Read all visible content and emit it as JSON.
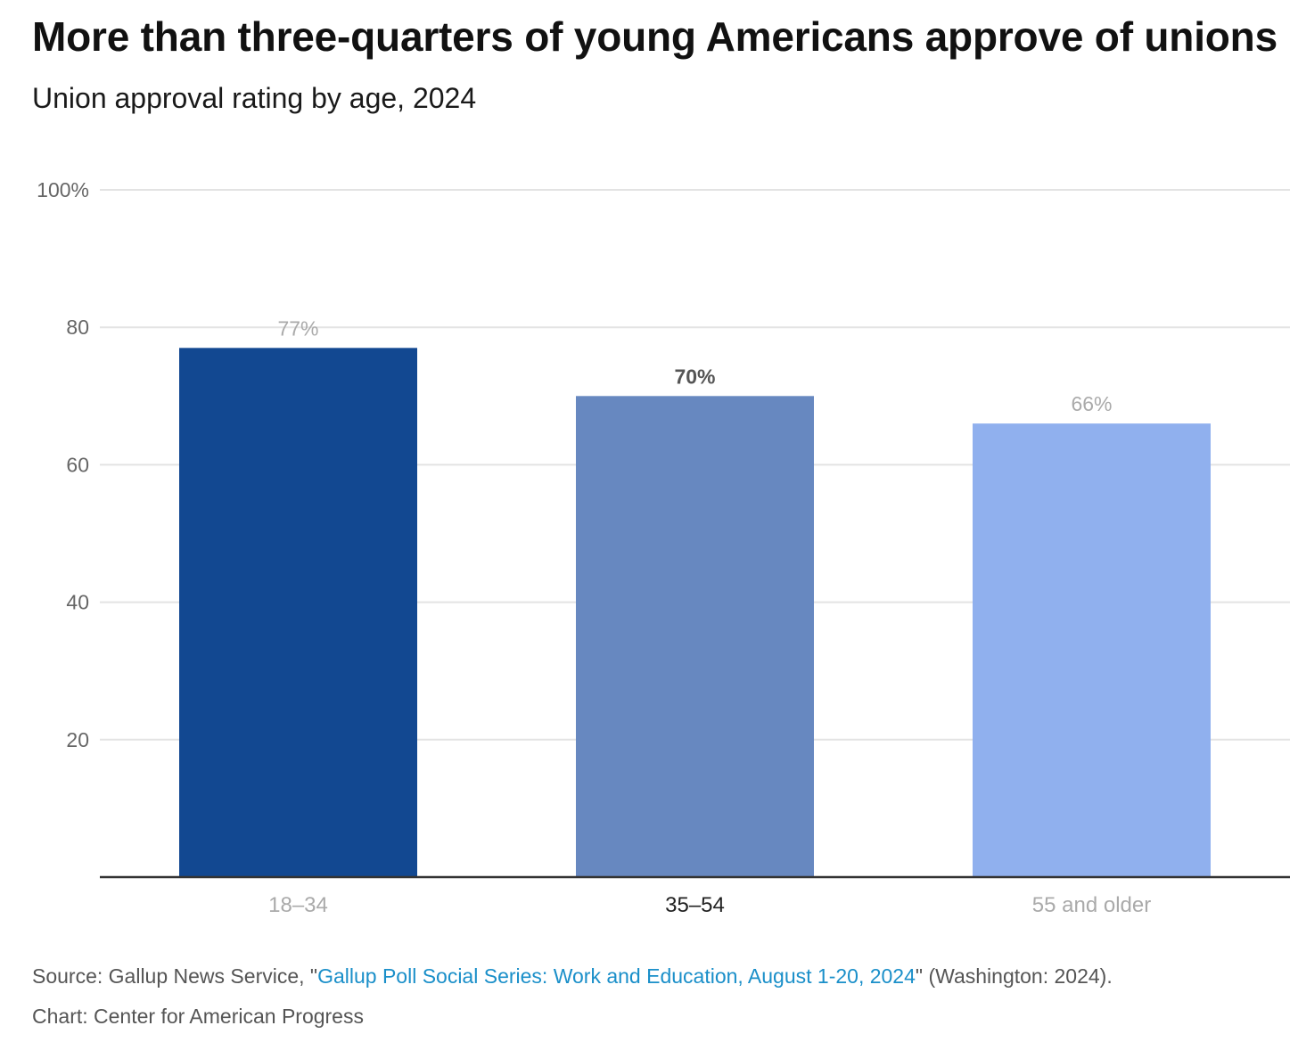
{
  "title": "More than three-quarters of young Americans approve of unions",
  "subtitle": "Union approval rating by age, 2024",
  "chart_data": {
    "type": "bar",
    "categories": [
      "18–34",
      "35–54",
      "55 and older"
    ],
    "values": [
      77,
      70,
      66
    ],
    "value_labels": [
      "77%",
      "70%",
      "66%"
    ],
    "bar_colors": [
      "#124891",
      "#6788c0",
      "#90b0ee"
    ],
    "highlighted_index": 1,
    "yticks": [
      {
        "value": 20,
        "label": "20"
      },
      {
        "value": 40,
        "label": "40"
      },
      {
        "value": 60,
        "label": "60"
      },
      {
        "value": 80,
        "label": "80"
      },
      {
        "value": 100,
        "label": "100%"
      }
    ],
    "ylim": [
      0,
      100
    ],
    "grid": true,
    "xlabel": "",
    "ylabel": ""
  },
  "footer": {
    "source_prefix": "Source: Gallup News Service, \"",
    "source_link": "Gallup Poll Social Series: Work and Education, August 1-20, 2024",
    "source_suffix": "\" (Washington: 2024).",
    "credit": "Chart: Center for American Progress"
  },
  "colors": {
    "link": "#1a8fc9",
    "grid": "#e3e3e3",
    "axis": "#333333",
    "muted_label": "#aaaaaa",
    "tick_label": "#666666"
  }
}
